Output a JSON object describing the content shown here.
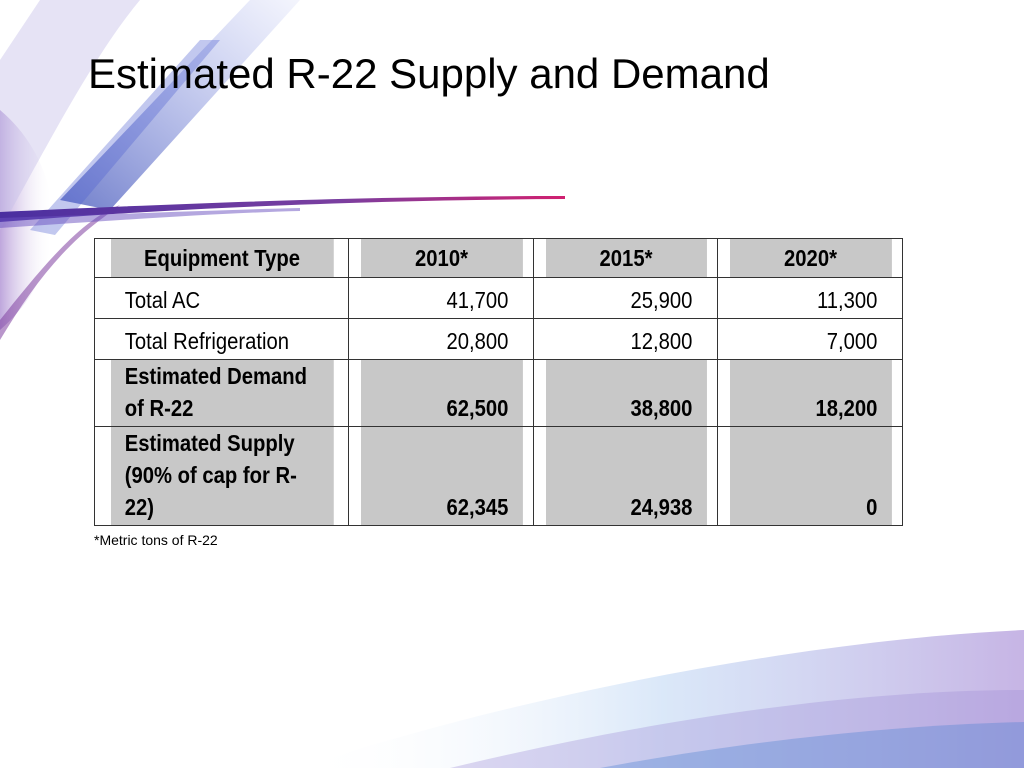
{
  "slide": {
    "title": "Estimated R-22 Supply and Demand",
    "footnote": "*Metric tons of R-22"
  },
  "table": {
    "headers": [
      "Equipment Type",
      "2010*",
      "2015*",
      "2020*"
    ],
    "rows": [
      {
        "label": "Total AC",
        "values": [
          "41,700",
          "25,900",
          "11,300"
        ],
        "shaded": false
      },
      {
        "label": "Total Refrigeration",
        "values": [
          "20,800",
          "12,800",
          "7,000"
        ],
        "shaded": false
      },
      {
        "label": "Estimated Demand of R-22",
        "values": [
          "62,500",
          "38,800",
          "18,200"
        ],
        "shaded": true
      },
      {
        "label": "Estimated Supply (90% of cap for R-22)",
        "values": [
          "62,345",
          "24,938",
          "0"
        ],
        "shaded": true
      }
    ]
  },
  "colors": {
    "header_fill": "#c8c8c8",
    "accent_purple": "#7a3fa0",
    "accent_blue": "#3a4fc0",
    "accent_magenta": "#c0207a"
  }
}
